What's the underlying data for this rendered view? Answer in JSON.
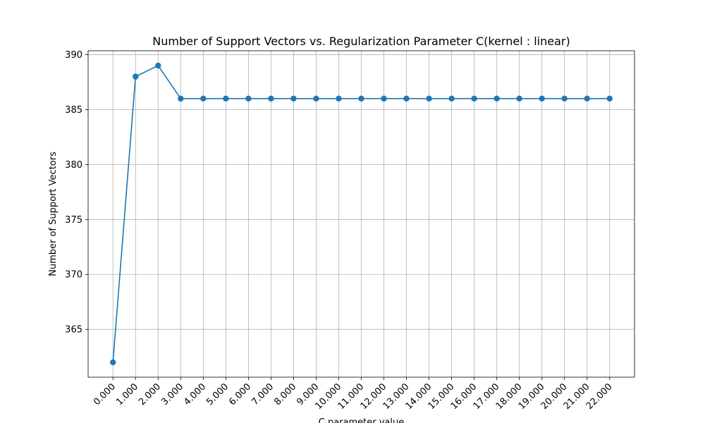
{
  "chart_data": {
    "type": "line",
    "title": "Number of Support Vectors vs. Regularization Parameter C(kernel : linear)",
    "xlabel": "C parameter value",
    "ylabel": "Number of Support Vectors",
    "x": [
      0,
      1,
      2,
      3,
      4,
      5,
      6,
      7,
      8,
      9,
      10,
      11,
      12,
      13,
      14,
      15,
      16,
      17,
      18,
      19,
      20,
      21,
      22
    ],
    "x_tick_labels": [
      "0.000",
      "1.000",
      "2.000",
      "3.000",
      "4.000",
      "5.000",
      "6.000",
      "7.000",
      "8.000",
      "9.000",
      "10.000",
      "11.000",
      "12.000",
      "13.000",
      "14.000",
      "15.000",
      "16.000",
      "17.000",
      "18.000",
      "19.000",
      "20.000",
      "21.000",
      "22.000"
    ],
    "series": [
      {
        "values": [
          362,
          388,
          389,
          386,
          386,
          386,
          386,
          386,
          386,
          386,
          386,
          386,
          386,
          386,
          386,
          386,
          386,
          386,
          386,
          386,
          386,
          386,
          386
        ],
        "color": "#1f77b4",
        "marker": "circle"
      }
    ],
    "y_ticks": [
      365,
      370,
      375,
      380,
      385,
      390
    ],
    "xlim": [
      -1.1,
      23.1
    ],
    "ylim": [
      360.65,
      390.35
    ],
    "grid": true
  }
}
